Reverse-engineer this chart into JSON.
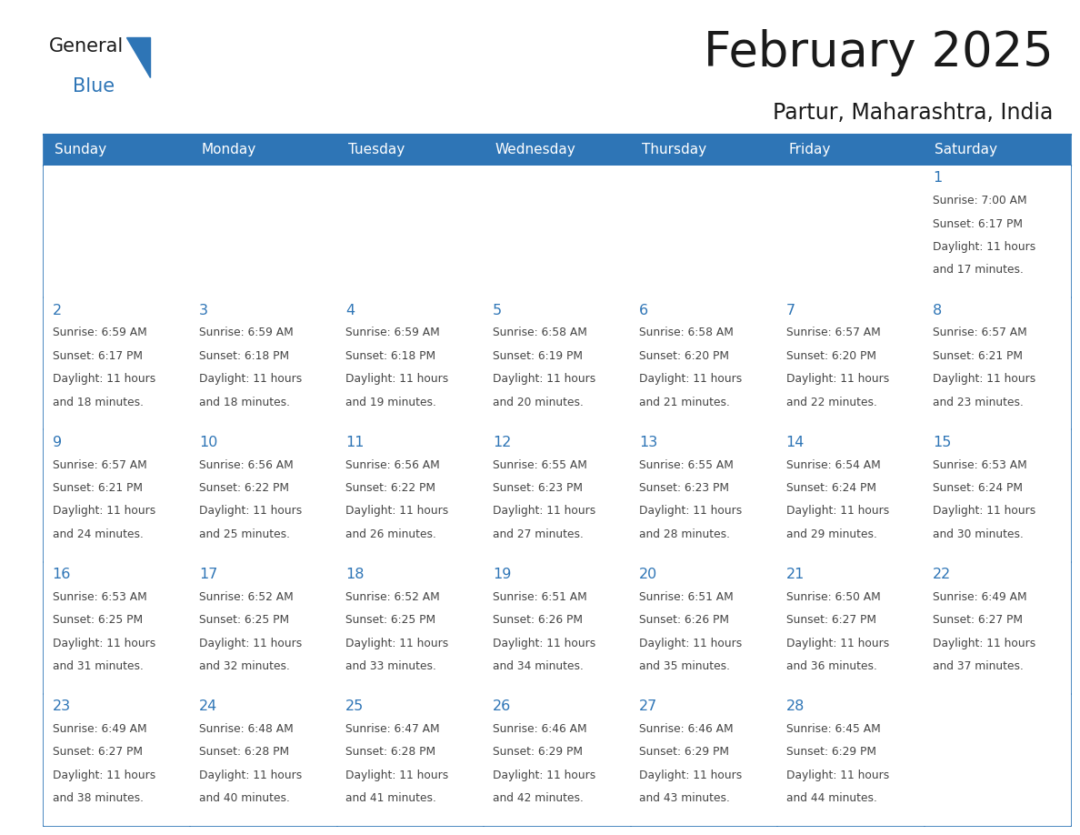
{
  "title": "February 2025",
  "subtitle": "Partur, Maharashtra, India",
  "header_color": "#2E75B6",
  "header_text_color": "#FFFFFF",
  "background_color": "#FFFFFF",
  "cell_bg_color": "#FFFFFF",
  "border_color": "#2E75B6",
  "text_color": "#444444",
  "day_number_color": "#2E75B6",
  "day_headers": [
    "Sunday",
    "Monday",
    "Tuesday",
    "Wednesday",
    "Thursday",
    "Friday",
    "Saturday"
  ],
  "days": [
    {
      "day": 1,
      "col": 6,
      "row": 0,
      "sunrise": "7:00 AM",
      "sunset": "6:17 PM",
      "daylight": "11 hours and 17 minutes."
    },
    {
      "day": 2,
      "col": 0,
      "row": 1,
      "sunrise": "6:59 AM",
      "sunset": "6:17 PM",
      "daylight": "11 hours and 18 minutes."
    },
    {
      "day": 3,
      "col": 1,
      "row": 1,
      "sunrise": "6:59 AM",
      "sunset": "6:18 PM",
      "daylight": "11 hours and 18 minutes."
    },
    {
      "day": 4,
      "col": 2,
      "row": 1,
      "sunrise": "6:59 AM",
      "sunset": "6:18 PM",
      "daylight": "11 hours and 19 minutes."
    },
    {
      "day": 5,
      "col": 3,
      "row": 1,
      "sunrise": "6:58 AM",
      "sunset": "6:19 PM",
      "daylight": "11 hours and 20 minutes."
    },
    {
      "day": 6,
      "col": 4,
      "row": 1,
      "sunrise": "6:58 AM",
      "sunset": "6:20 PM",
      "daylight": "11 hours and 21 minutes."
    },
    {
      "day": 7,
      "col": 5,
      "row": 1,
      "sunrise": "6:57 AM",
      "sunset": "6:20 PM",
      "daylight": "11 hours and 22 minutes."
    },
    {
      "day": 8,
      "col": 6,
      "row": 1,
      "sunrise": "6:57 AM",
      "sunset": "6:21 PM",
      "daylight": "11 hours and 23 minutes."
    },
    {
      "day": 9,
      "col": 0,
      "row": 2,
      "sunrise": "6:57 AM",
      "sunset": "6:21 PM",
      "daylight": "11 hours and 24 minutes."
    },
    {
      "day": 10,
      "col": 1,
      "row": 2,
      "sunrise": "6:56 AM",
      "sunset": "6:22 PM",
      "daylight": "11 hours and 25 minutes."
    },
    {
      "day": 11,
      "col": 2,
      "row": 2,
      "sunrise": "6:56 AM",
      "sunset": "6:22 PM",
      "daylight": "11 hours and 26 minutes."
    },
    {
      "day": 12,
      "col": 3,
      "row": 2,
      "sunrise": "6:55 AM",
      "sunset": "6:23 PM",
      "daylight": "11 hours and 27 minutes."
    },
    {
      "day": 13,
      "col": 4,
      "row": 2,
      "sunrise": "6:55 AM",
      "sunset": "6:23 PM",
      "daylight": "11 hours and 28 minutes."
    },
    {
      "day": 14,
      "col": 5,
      "row": 2,
      "sunrise": "6:54 AM",
      "sunset": "6:24 PM",
      "daylight": "11 hours and 29 minutes."
    },
    {
      "day": 15,
      "col": 6,
      "row": 2,
      "sunrise": "6:53 AM",
      "sunset": "6:24 PM",
      "daylight": "11 hours and 30 minutes."
    },
    {
      "day": 16,
      "col": 0,
      "row": 3,
      "sunrise": "6:53 AM",
      "sunset": "6:25 PM",
      "daylight": "11 hours and 31 minutes."
    },
    {
      "day": 17,
      "col": 1,
      "row": 3,
      "sunrise": "6:52 AM",
      "sunset": "6:25 PM",
      "daylight": "11 hours and 32 minutes."
    },
    {
      "day": 18,
      "col": 2,
      "row": 3,
      "sunrise": "6:52 AM",
      "sunset": "6:25 PM",
      "daylight": "11 hours and 33 minutes."
    },
    {
      "day": 19,
      "col": 3,
      "row": 3,
      "sunrise": "6:51 AM",
      "sunset": "6:26 PM",
      "daylight": "11 hours and 34 minutes."
    },
    {
      "day": 20,
      "col": 4,
      "row": 3,
      "sunrise": "6:51 AM",
      "sunset": "6:26 PM",
      "daylight": "11 hours and 35 minutes."
    },
    {
      "day": 21,
      "col": 5,
      "row": 3,
      "sunrise": "6:50 AM",
      "sunset": "6:27 PM",
      "daylight": "11 hours and 36 minutes."
    },
    {
      "day": 22,
      "col": 6,
      "row": 3,
      "sunrise": "6:49 AM",
      "sunset": "6:27 PM",
      "daylight": "11 hours and 37 minutes."
    },
    {
      "day": 23,
      "col": 0,
      "row": 4,
      "sunrise": "6:49 AM",
      "sunset": "6:27 PM",
      "daylight": "11 hours and 38 minutes."
    },
    {
      "day": 24,
      "col": 1,
      "row": 4,
      "sunrise": "6:48 AM",
      "sunset": "6:28 PM",
      "daylight": "11 hours and 40 minutes."
    },
    {
      "day": 25,
      "col": 2,
      "row": 4,
      "sunrise": "6:47 AM",
      "sunset": "6:28 PM",
      "daylight": "11 hours and 41 minutes."
    },
    {
      "day": 26,
      "col": 3,
      "row": 4,
      "sunrise": "6:46 AM",
      "sunset": "6:29 PM",
      "daylight": "11 hours and 42 minutes."
    },
    {
      "day": 27,
      "col": 4,
      "row": 4,
      "sunrise": "6:46 AM",
      "sunset": "6:29 PM",
      "daylight": "11 hours and 43 minutes."
    },
    {
      "day": 28,
      "col": 5,
      "row": 4,
      "sunrise": "6:45 AM",
      "sunset": "6:29 PM",
      "daylight": "11 hours and 44 minutes."
    }
  ],
  "fig_width": 11.88,
  "fig_height": 9.18,
  "dpi": 100
}
